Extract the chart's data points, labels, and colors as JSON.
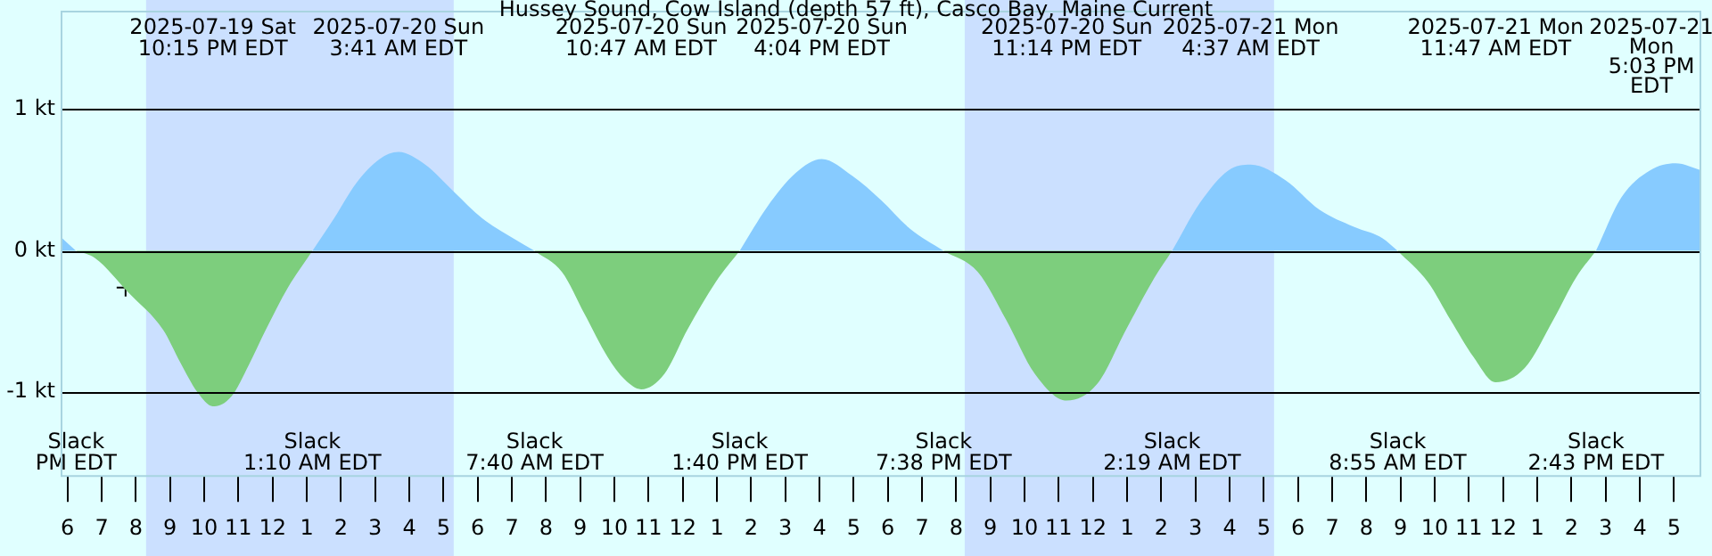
{
  "chart_data": {
    "type": "area",
    "title": "Hussey Sound, Cow Island (depth 57 ft), Casco Bay, Maine Current",
    "xlim": [
      "2025-07-19T17:48",
      "2025-07-21T17:48"
    ],
    "xticks": [
      {
        "value": "2025-07-19T18:00",
        "label": "6"
      },
      {
        "value": "2025-07-19T19:00",
        "label": "7"
      },
      {
        "value": "2025-07-19T20:00",
        "label": "8"
      },
      {
        "value": "2025-07-19T21:00",
        "label": "9"
      },
      {
        "value": "2025-07-19T22:00",
        "label": "10"
      },
      {
        "value": "2025-07-19T23:00",
        "label": "11"
      },
      {
        "value": "2025-07-20T00:00",
        "label": "12"
      },
      {
        "value": "2025-07-20T01:00",
        "label": "1"
      },
      {
        "value": "2025-07-20T02:00",
        "label": "2"
      },
      {
        "value": "2025-07-20T03:00",
        "label": "3"
      },
      {
        "value": "2025-07-20T04:00",
        "label": "4"
      },
      {
        "value": "2025-07-20T05:00",
        "label": "5"
      },
      {
        "value": "2025-07-20T06:00",
        "label": "6"
      },
      {
        "value": "2025-07-20T07:00",
        "label": "7"
      },
      {
        "value": "2025-07-20T08:00",
        "label": "8"
      },
      {
        "value": "2025-07-20T09:00",
        "label": "9"
      },
      {
        "value": "2025-07-20T10:00",
        "label": "10"
      },
      {
        "value": "2025-07-20T11:00",
        "label": "11"
      },
      {
        "value": "2025-07-20T12:00",
        "label": "12"
      },
      {
        "value": "2025-07-20T13:00",
        "label": "1"
      },
      {
        "value": "2025-07-20T14:00",
        "label": "2"
      },
      {
        "value": "2025-07-20T15:00",
        "label": "3"
      },
      {
        "value": "2025-07-20T16:00",
        "label": "4"
      },
      {
        "value": "2025-07-20T17:00",
        "label": "5"
      },
      {
        "value": "2025-07-20T18:00",
        "label": "6"
      },
      {
        "value": "2025-07-20T19:00",
        "label": "7"
      },
      {
        "value": "2025-07-20T20:00",
        "label": "8"
      },
      {
        "value": "2025-07-20T21:00",
        "label": "9"
      },
      {
        "value": "2025-07-20T22:00",
        "label": "10"
      },
      {
        "value": "2025-07-20T23:00",
        "label": "11"
      },
      {
        "value": "2025-07-21T00:00",
        "label": "12"
      },
      {
        "value": "2025-07-21T01:00",
        "label": "1"
      },
      {
        "value": "2025-07-21T02:00",
        "label": "2"
      },
      {
        "value": "2025-07-21T03:00",
        "label": "3"
      },
      {
        "value": "2025-07-21T04:00",
        "label": "4"
      },
      {
        "value": "2025-07-21T05:00",
        "label": "5"
      },
      {
        "value": "2025-07-21T06:00",
        "label": "6"
      },
      {
        "value": "2025-07-21T07:00",
        "label": "7"
      },
      {
        "value": "2025-07-21T08:00",
        "label": "8"
      },
      {
        "value": "2025-07-21T09:00",
        "label": "9"
      },
      {
        "value": "2025-07-21T10:00",
        "label": "10"
      },
      {
        "value": "2025-07-21T11:00",
        "label": "11"
      },
      {
        "value": "2025-07-21T12:00",
        "label": "12"
      },
      {
        "value": "2025-07-21T13:00",
        "label": "1"
      },
      {
        "value": "2025-07-21T14:00",
        "label": "2"
      },
      {
        "value": "2025-07-21T15:00",
        "label": "3"
      },
      {
        "value": "2025-07-21T16:00",
        "label": "4"
      },
      {
        "value": "2025-07-21T17:00",
        "label": "5"
      }
    ],
    "ylim": [
      -1.6,
      1.7
    ],
    "yticks": [
      {
        "value": 1,
        "label": "1 kt"
      },
      {
        "value": 0,
        "label": "0 kt"
      },
      {
        "value": -1,
        "label": "-1 kt"
      }
    ],
    "grid": "y",
    "legend": false,
    "marker": "none",
    "bands": [
      {
        "axis": "x",
        "from": "2025-07-19T20:18",
        "to": "2025-07-20T05:18",
        "color": "#cbe0ff"
      },
      {
        "axis": "x",
        "from": "2025-07-20T20:15",
        "to": "2025-07-21T05:18",
        "color": "#cbe0ff"
      }
    ],
    "series": [
      {
        "color": "#87cbff",
        "x": [
          "2025-07-19T17:48",
          "2025-07-19T18:15",
          "2025-07-19T18:18",
          "2025-07-20T01:10",
          "2025-07-20T01:48",
          "2025-07-20T02:27",
          "2025-07-20T03:08",
          "2025-07-20T03:41",
          "2025-07-20T04:28",
          "2025-07-20T05:18",
          "2025-07-20T06:08",
          "2025-07-20T06:58",
          "2025-07-20T07:40",
          "2025-07-20T07:42",
          "2025-07-20T13:40",
          "2025-07-20T14:28",
          "2025-07-20T15:18",
          "2025-07-20T16:04",
          "2025-07-20T16:58",
          "2025-07-20T17:48",
          "2025-07-20T18:38",
          "2025-07-20T19:38",
          "2025-07-20T19:42",
          "2025-07-21T02:19",
          "2025-07-21T03:08",
          "2025-07-21T03:58",
          "2025-07-21T04:37",
          "2025-07-21T05:38",
          "2025-07-21T06:38",
          "2025-07-21T07:38",
          "2025-07-21T08:28",
          "2025-07-21T08:55",
          "2025-07-21T09:00",
          "2025-07-21T14:43",
          "2025-07-21T15:28",
          "2025-07-21T16:18",
          "2025-07-21T17:03",
          "2025-07-21T17:48"
        ],
        "values": [
          0.1,
          0,
          null,
          0,
          0.23,
          0.48,
          0.65,
          0.7,
          0.61,
          0.42,
          0.23,
          0.1,
          0,
          null,
          0,
          0.31,
          0.55,
          0.65,
          0.53,
          0.36,
          0.16,
          0,
          null,
          0,
          0.34,
          0.57,
          0.61,
          0.5,
          0.29,
          0.17,
          0.09,
          0,
          null,
          0,
          0.38,
          0.57,
          0.62,
          0.57
        ]
      },
      {
        "color": "#7dce7d",
        "x": [
          "2025-07-19T18:15",
          "2025-07-19T18:48",
          "2025-07-19T19:48",
          "2025-07-19T20:48",
          "2025-07-19T21:18",
          "2025-07-19T21:48",
          "2025-07-19T22:15",
          "2025-07-19T22:48",
          "2025-07-19T23:18",
          "2025-07-19T23:48",
          "2025-07-20T00:27",
          "2025-07-20T01:10",
          "2025-07-20T01:12",
          "2025-07-20T07:40",
          "2025-07-20T08:28",
          "2025-07-20T09:08",
          "2025-07-20T09:48",
          "2025-07-20T10:18",
          "2025-07-20T10:47",
          "2025-07-20T11:28",
          "2025-07-20T12:08",
          "2025-07-20T12:58",
          "2025-07-20T13:40",
          "2025-07-20T13:42",
          "2025-07-20T19:38",
          "2025-07-20T20:38",
          "2025-07-20T21:28",
          "2025-07-20T22:18",
          "2025-07-20T23:14",
          "2025-07-21T00:08",
          "2025-07-21T00:58",
          "2025-07-21T01:48",
          "2025-07-21T02:19",
          "2025-07-21T02:24",
          "2025-07-21T08:55",
          "2025-07-21T09:48",
          "2025-07-21T10:28",
          "2025-07-21T11:08",
          "2025-07-21T11:47",
          "2025-07-21T12:38",
          "2025-07-21T13:28",
          "2025-07-21T14:08",
          "2025-07-21T14:43"
        ],
        "values": [
          0,
          -0.05,
          -0.3,
          -0.56,
          -0.79,
          -1.0,
          -1.1,
          -1.03,
          -0.81,
          -0.56,
          -0.26,
          0,
          null,
          0,
          -0.15,
          -0.45,
          -0.75,
          -0.91,
          -0.98,
          -0.87,
          -0.56,
          -0.22,
          0,
          null,
          0,
          -0.15,
          -0.49,
          -0.87,
          -1.06,
          -0.94,
          -0.56,
          -0.19,
          0,
          null,
          0,
          -0.22,
          -0.49,
          -0.75,
          -0.93,
          -0.83,
          -0.49,
          -0.19,
          0
        ]
      },
      {
        "type": "scatter",
        "marker": "cross",
        "color": "#000000",
        "x": [
          "2025-07-19T19:42"
        ],
        "values": [
          -0.26
        ]
      }
    ],
    "annotations": [
      "2025-07-19 Sat\n10:15 PM EDT",
      "2025-07-20 Sun\n3:41 AM EDT",
      "2025-07-20 Sun\n10:47 AM EDT",
      "2025-07-20 Sun\n4:04 PM EDT",
      "2025-07-20 Sun\n11:14 PM EDT",
      "2025-07-21 Mon\n4:37 AM EDT",
      "2025-07-21 Mon\n11:47 AM EDT",
      "2025-07-21 Mon\n5:03 PM EDT",
      "Slack\nPM EDT",
      "Slack\n1:10 AM EDT",
      "Slack\n7:40 AM EDT",
      "Slack\n1:40 PM EDT",
      "Slack\n7:38 PM EDT",
      "Slack\n2:19 AM EDT",
      "Slack\n8:55 AM EDT",
      "Slack\n2:43 PM EDT"
    ]
  }
}
